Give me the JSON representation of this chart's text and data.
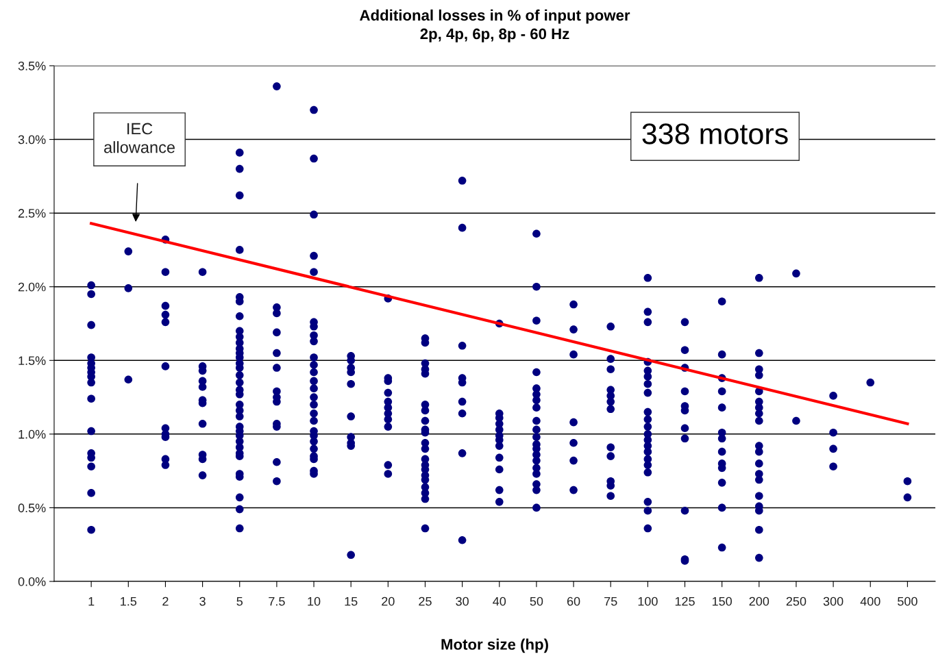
{
  "chart_data": {
    "type": "scatter",
    "title": "Additional losses in % of input power\n2p, 4p, 6p, 8p - 60 Hz",
    "xlabel": "Motor size (hp)",
    "categories": [
      "1",
      "1.5",
      "2",
      "3",
      "5",
      "7.5",
      "10",
      "15",
      "20",
      "25",
      "30",
      "40",
      "50",
      "60",
      "75",
      "100",
      "125",
      "150",
      "200",
      "250",
      "300",
      "400",
      "500"
    ],
    "ylim": [
      0,
      3.5
    ],
    "yticks": [
      {
        "value": 0,
        "label": "0.0%"
      },
      {
        "value": 0.5,
        "label": "0.5%"
      },
      {
        "value": 1,
        "label": "1.0%"
      },
      {
        "value": 1.5,
        "label": "1.5%"
      },
      {
        "value": 2,
        "label": "2.0%"
      },
      {
        "value": 2.5,
        "label": "2.5%"
      },
      {
        "value": 3,
        "label": "3.0%"
      },
      {
        "value": 3.5,
        "label": "3.5%"
      }
    ],
    "grid": "y",
    "marker": "circle",
    "legend": false,
    "series": [
      {
        "color": "#000080",
        "x": [
          "1",
          "1",
          "1",
          "1",
          "1",
          "1",
          "1",
          "1",
          "1",
          "1",
          "1",
          "1",
          "1",
          "1",
          "1",
          "1",
          "1.5",
          "1.5",
          "1.5",
          "2",
          "2",
          "2",
          "2",
          "2",
          "2",
          "2",
          "2",
          "2",
          "2",
          "2",
          "3",
          "3",
          "3",
          "3",
          "3",
          "3",
          "3",
          "3",
          "3",
          "3",
          "3",
          "5",
          "5",
          "5",
          "5",
          "5",
          "5",
          "5",
          "5",
          "5",
          "5",
          "5",
          "5",
          "5",
          "5",
          "5",
          "5",
          "5",
          "5",
          "5",
          "5",
          "5",
          "5",
          "5",
          "5",
          "5",
          "5",
          "5",
          "5",
          "5",
          "5",
          "5",
          "5",
          "5",
          "5",
          "7.5",
          "7.5",
          "7.5",
          "7.5",
          "7.5",
          "7.5",
          "7.5",
          "7.5",
          "7.5",
          "7.5",
          "7.5",
          "7.5",
          "7.5",
          "10",
          "10",
          "10",
          "10",
          "10",
          "10",
          "10",
          "10",
          "10",
          "10",
          "10",
          "10",
          "10",
          "10",
          "10",
          "10",
          "10",
          "10",
          "10",
          "10",
          "10",
          "10",
          "10",
          "10",
          "10",
          "10",
          "15",
          "15",
          "15",
          "15",
          "15",
          "15",
          "15",
          "15",
          "15",
          "15",
          "20",
          "20",
          "20",
          "20",
          "20",
          "20",
          "20",
          "20",
          "20",
          "20",
          "20",
          "25",
          "25",
          "25",
          "25",
          "25",
          "25",
          "25",
          "25",
          "25",
          "25",
          "25",
          "25",
          "25",
          "25",
          "25",
          "25",
          "25",
          "25",
          "25",
          "25",
          "25",
          "30",
          "30",
          "30",
          "30",
          "30",
          "30",
          "30",
          "30",
          "30",
          "40",
          "40",
          "40",
          "40",
          "40",
          "40",
          "40",
          "40",
          "40",
          "40",
          "40",
          "40",
          "50",
          "50",
          "50",
          "50",
          "50",
          "50",
          "50",
          "50",
          "50",
          "50",
          "50",
          "50",
          "50",
          "50",
          "50",
          "50",
          "50",
          "50",
          "50",
          "50",
          "60",
          "60",
          "60",
          "60",
          "60",
          "60",
          "60",
          "75",
          "75",
          "75",
          "75",
          "75",
          "75",
          "75",
          "75",
          "75",
          "75",
          "75",
          "75",
          "100",
          "100",
          "100",
          "100",
          "100",
          "100",
          "100",
          "100",
          "100",
          "100",
          "100",
          "100",
          "100",
          "100",
          "100",
          "100",
          "100",
          "100",
          "100",
          "100",
          "100",
          "125",
          "125",
          "125",
          "125",
          "125",
          "125",
          "125",
          "125",
          "125",
          "125",
          "125",
          "150",
          "150",
          "150",
          "150",
          "150",
          "150",
          "150",
          "150",
          "150",
          "150",
          "150",
          "150",
          "150",
          "200",
          "200",
          "200",
          "200",
          "200",
          "200",
          "200",
          "200",
          "200",
          "200",
          "200",
          "200",
          "200",
          "200",
          "200",
          "200",
          "200",
          "200",
          "200",
          "250",
          "250",
          "300",
          "300",
          "300",
          "300",
          "400",
          "500",
          "500"
        ],
        "values": [
          2.01,
          1.95,
          1.74,
          1.52,
          1.48,
          1.45,
          1.42,
          1.39,
          1.35,
          1.24,
          1.02,
          0.87,
          0.84,
          0.78,
          0.6,
          0.35,
          2.24,
          1.99,
          1.37,
          2.32,
          2.1,
          1.87,
          1.81,
          1.76,
          1.46,
          1.04,
          1.0,
          0.98,
          0.83,
          0.79,
          2.1,
          1.46,
          1.43,
          1.36,
          1.32,
          1.23,
          1.21,
          1.07,
          0.86,
          0.83,
          0.72,
          2.91,
          2.8,
          2.62,
          2.25,
          1.93,
          1.9,
          1.8,
          1.7,
          1.66,
          1.62,
          1.58,
          1.55,
          1.52,
          1.48,
          1.45,
          1.4,
          1.35,
          1.3,
          1.27,
          1.2,
          1.16,
          1.12,
          1.05,
          1.02,
          0.99,
          0.95,
          0.91,
          0.87,
          0.85,
          0.73,
          0.71,
          0.57,
          0.49,
          0.36,
          3.36,
          1.86,
          1.82,
          1.69,
          1.55,
          1.45,
          1.29,
          1.25,
          1.22,
          1.07,
          1.05,
          0.81,
          0.68,
          3.2,
          2.87,
          2.49,
          2.21,
          2.1,
          1.76,
          1.73,
          1.67,
          1.63,
          1.52,
          1.47,
          1.42,
          1.36,
          1.31,
          1.25,
          1.2,
          1.14,
          1.09,
          1.02,
          0.99,
          0.95,
          0.9,
          0.85,
          0.83,
          0.75,
          0.73,
          1.53,
          1.5,
          1.45,
          1.42,
          1.34,
          1.12,
          0.98,
          0.94,
          0.92,
          0.18,
          1.92,
          1.38,
          1.36,
          1.28,
          1.22,
          1.18,
          1.14,
          1.1,
          1.05,
          0.79,
          0.73,
          1.65,
          1.62,
          1.48,
          1.44,
          1.41,
          1.2,
          1.16,
          1.09,
          1.03,
          1.01,
          0.94,
          0.9,
          0.83,
          0.79,
          0.76,
          0.72,
          0.69,
          0.64,
          0.6,
          0.56,
          0.36,
          2.72,
          2.4,
          1.6,
          1.38,
          1.35,
          1.22,
          1.14,
          0.87,
          0.28,
          1.75,
          1.14,
          1.11,
          1.07,
          1.03,
          0.99,
          0.96,
          0.92,
          0.84,
          0.76,
          0.62,
          0.54,
          2.36,
          2.0,
          1.77,
          1.42,
          1.31,
          1.27,
          1.23,
          1.18,
          1.09,
          1.03,
          0.98,
          0.93,
          0.9,
          0.86,
          0.82,
          0.77,
          0.73,
          0.66,
          0.62,
          0.5,
          1.88,
          1.71,
          1.54,
          1.08,
          0.94,
          0.82,
          0.62,
          1.73,
          1.51,
          1.44,
          1.3,
          1.26,
          1.22,
          1.17,
          0.91,
          0.85,
          0.68,
          0.65,
          0.58,
          2.06,
          1.83,
          1.76,
          1.49,
          1.43,
          1.39,
          1.34,
          1.28,
          1.15,
          1.1,
          1.05,
          1.0,
          0.96,
          0.92,
          0.88,
          0.83,
          0.79,
          0.74,
          0.54,
          0.48,
          0.36,
          1.76,
          1.57,
          1.45,
          1.29,
          1.19,
          1.16,
          1.04,
          0.97,
          0.48,
          0.15,
          0.14,
          1.9,
          1.54,
          1.38,
          1.29,
          1.18,
          1.01,
          0.97,
          0.88,
          0.8,
          0.77,
          0.67,
          0.5,
          0.23,
          2.06,
          1.55,
          1.44,
          1.4,
          1.29,
          1.22,
          1.18,
          1.14,
          1.09,
          0.92,
          0.88,
          0.8,
          0.73,
          0.69,
          0.58,
          0.51,
          0.48,
          0.35,
          0.16,
          2.09,
          1.09,
          1.26,
          1.01,
          0.9,
          0.78,
          1.35,
          0.68,
          0.57
        ]
      },
      {
        "type": "line",
        "color": "#ff0000",
        "marker": "none",
        "x": [
          "1",
          "500"
        ],
        "values": [
          2.43,
          1.07
        ]
      }
    ],
    "annotations": [
      "IEC\nallowance",
      "338 motors"
    ]
  }
}
